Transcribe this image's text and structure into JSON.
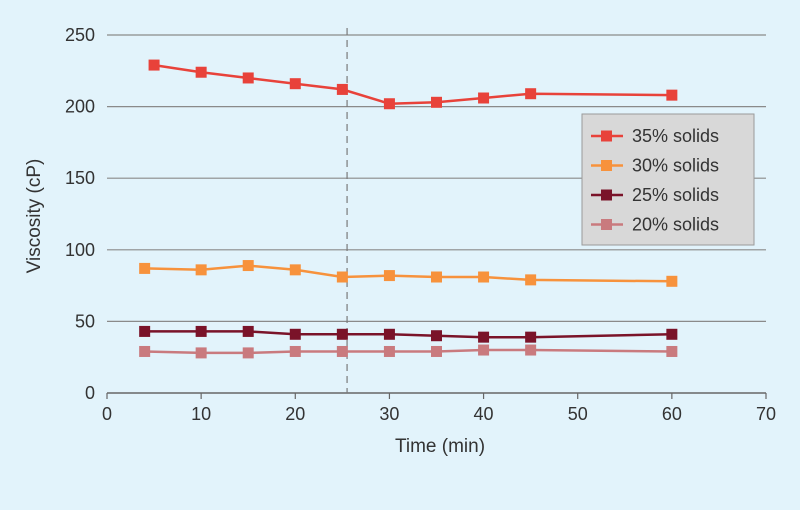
{
  "chart_data": {
    "type": "line",
    "title": "",
    "xlabel": "Time (min)",
    "ylabel": "Viscosity (cP)",
    "xlim": [
      0,
      70
    ],
    "ylim": [
      0,
      250
    ],
    "xticks": [
      0,
      10,
      20,
      30,
      40,
      50,
      60,
      70
    ],
    "yticks": [
      0,
      50,
      100,
      150,
      200,
      250
    ],
    "grid": "horizontal",
    "reference_line_x": 25.5,
    "legend_position": "right",
    "series": [
      {
        "name": "35% solids",
        "color": "#e8423a",
        "x": [
          5,
          10,
          15,
          20,
          25,
          30,
          35,
          40,
          45,
          60
        ],
        "y": [
          229,
          224,
          220,
          216,
          212,
          202,
          203,
          206,
          209,
          208
        ]
      },
      {
        "name": "30% solids",
        "color": "#f7923c",
        "x": [
          4,
          10,
          15,
          20,
          25,
          30,
          35,
          40,
          45,
          60
        ],
        "y": [
          87,
          86,
          89,
          86,
          81,
          82,
          81,
          81,
          79,
          78
        ]
      },
      {
        "name": "25% solids",
        "color": "#7a1329",
        "x": [
          4,
          10,
          15,
          20,
          25,
          30,
          35,
          40,
          45,
          60
        ],
        "y": [
          43,
          43,
          43,
          41,
          41,
          41,
          40,
          39,
          39,
          41
        ]
      },
      {
        "name": "20% solids",
        "color": "#c97a7e",
        "x": [
          4,
          10,
          15,
          20,
          25,
          30,
          35,
          40,
          45,
          60
        ],
        "y": [
          29,
          28,
          28,
          29,
          29,
          29,
          29,
          30,
          30,
          29
        ]
      }
    ]
  }
}
